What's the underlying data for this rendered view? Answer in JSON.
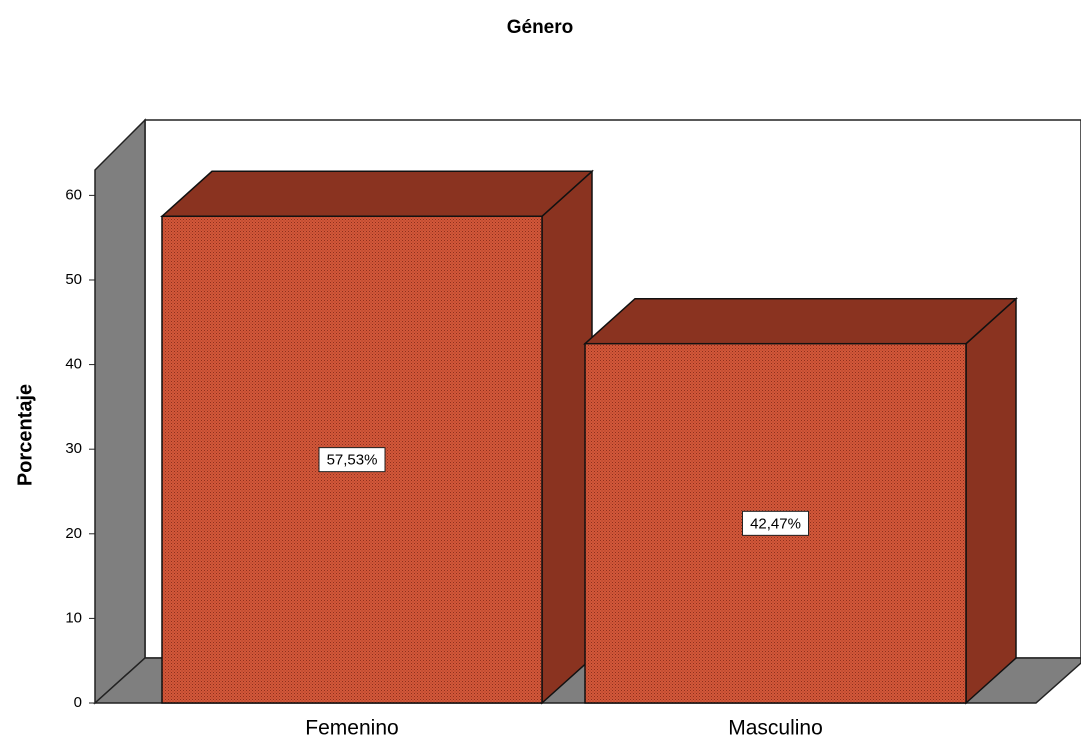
{
  "chart_data": {
    "type": "bar3d",
    "title": "Género",
    "y_label": "Porcentaje",
    "categories": [
      "Femenino",
      "Masculino"
    ],
    "values": [
      57.53,
      42.47
    ],
    "value_labels": [
      "57,53%",
      "42,47%"
    ],
    "color": "#c9502f",
    "ylim": [
      0,
      63
    ],
    "yticks": [
      0,
      10,
      20,
      30,
      40,
      50,
      60
    ]
  }
}
